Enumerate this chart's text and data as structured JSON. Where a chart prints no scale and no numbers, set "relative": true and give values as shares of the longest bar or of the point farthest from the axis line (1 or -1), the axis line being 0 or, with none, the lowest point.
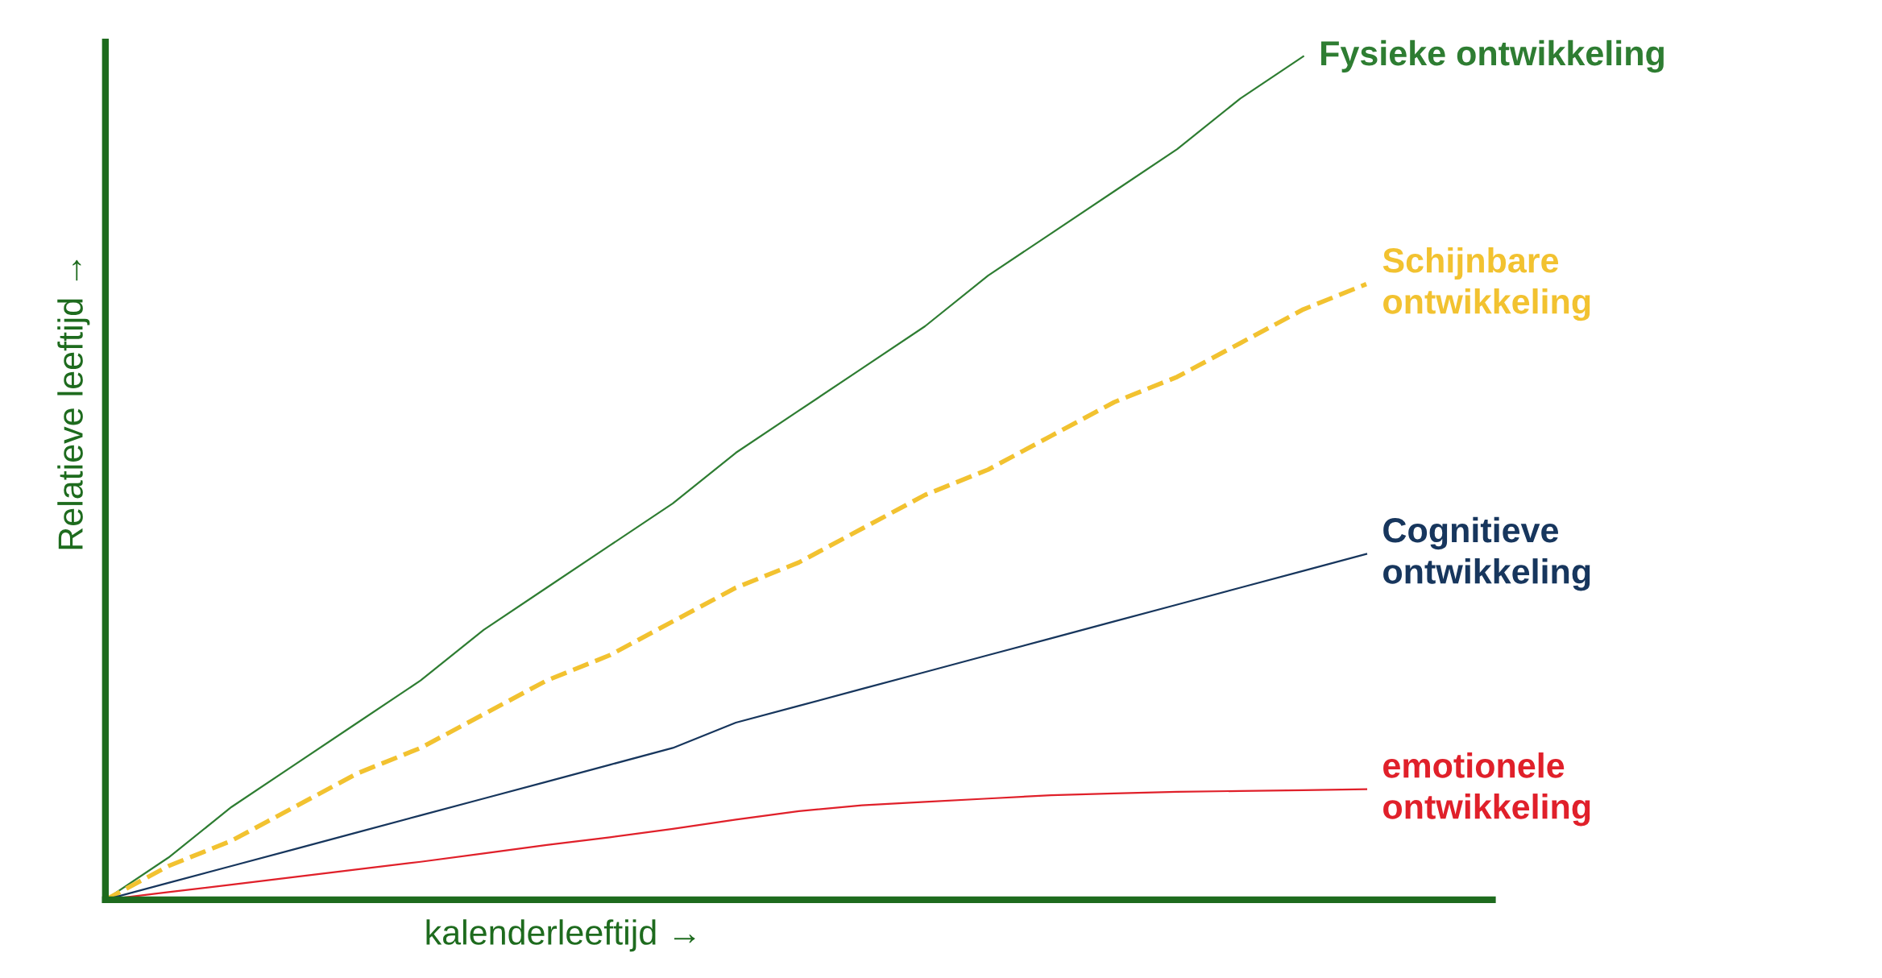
{
  "chart_data": {
    "type": "line",
    "relative": true,
    "xlabel": "kalenderleeftijd →",
    "ylabel": "Relatieve leeftijd →",
    "legend": false,
    "marker": "none",
    "categories": [
      null,
      null,
      null,
      null,
      null,
      null,
      null,
      null,
      null,
      null,
      null,
      null,
      null,
      null,
      null,
      null,
      null,
      null,
      null,
      null,
      null
    ],
    "series": [
      {
        "name": "Fysieke ontwikkeling",
        "color": "#2e7d32",
        "line_style": "solid",
        "values": [
          0,
          0.05,
          0.11,
          0.16,
          0.21,
          0.26,
          0.32,
          0.37,
          0.42,
          0.47,
          0.53,
          0.58,
          0.63,
          0.68,
          0.74,
          0.79,
          0.84,
          0.89,
          0.95,
          1,
          null
        ]
      },
      {
        "name": "Schijnbare\nontwikkeling",
        "color": "#f2c230",
        "line_style": "dashed",
        "values": [
          0,
          0.04,
          0.07,
          0.11,
          0.15,
          0.18,
          0.22,
          0.26,
          0.29,
          0.33,
          0.37,
          0.4,
          0.44,
          0.48,
          0.51,
          0.55,
          0.59,
          0.62,
          0.66,
          0.7,
          0.73
        ]
      },
      {
        "name": "Cognitieve\nontwikkeling",
        "color": "#17365d",
        "line_style": "solid",
        "values": [
          0,
          0.02,
          0.04,
          0.06,
          0.08,
          0.1,
          0.12,
          0.14,
          0.16,
          0.18,
          0.21,
          0.23,
          0.25,
          0.27,
          0.29,
          0.31,
          0.33,
          0.35,
          0.37,
          0.39,
          0.41
        ]
      },
      {
        "name": "emotionele\nontwikkeling",
        "color": "#e0202a",
        "line_style": "solid",
        "values": [
          0,
          0.009,
          0.018,
          0.027,
          0.036,
          0.045,
          0.055,
          0.065,
          0.074,
          0.084,
          0.095,
          0.105,
          0.112,
          0.116,
          0.12,
          0.124,
          0.126,
          0.128,
          0.129,
          0.13,
          0.131
        ]
      }
    ]
  }
}
